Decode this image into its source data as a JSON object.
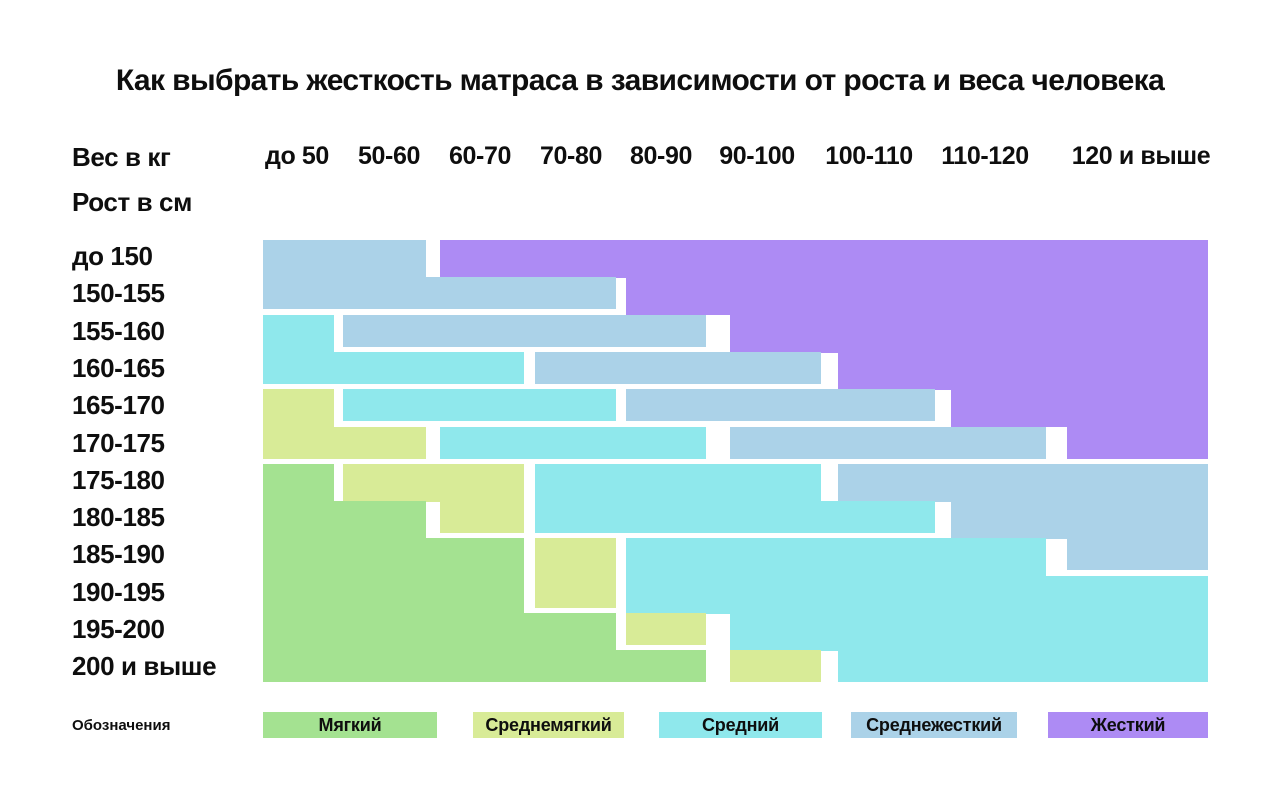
{
  "title": "Как выбрать жесткость матраса в зависимости от роста и веса человека",
  "axis": {
    "weight_label": "Вес в кг",
    "height_label": "Рост в см"
  },
  "legend": {
    "label": "Обозначения"
  },
  "chart_data": {
    "type": "heatmap",
    "title": "Как выбрать жесткость матраса в зависимости от роста и веса человека",
    "xlabel": "Вес в кг",
    "ylabel": "Рост в см",
    "grid": false,
    "legend_position": "bottom",
    "x_categories": [
      "до 50",
      "50-60",
      "60-70",
      "70-80",
      "80-90",
      "90-100",
      "100-110",
      "110-120",
      "120 и выше"
    ],
    "y_categories": [
      "до 150",
      "150-155",
      "155-160",
      "160-165",
      "165-170",
      "170-175",
      "175-180",
      "180-185",
      "185-190",
      "190-195",
      "195-200",
      "200 и выше"
    ],
    "categories": [
      {
        "id": "soft",
        "label": "Мягкий",
        "color": "#A4E291"
      },
      {
        "id": "medium_soft",
        "label": "Среднемягкий",
        "color": "#D8EB97"
      },
      {
        "id": "medium",
        "label": "Средний",
        "color": "#8FE8EC"
      },
      {
        "id": "medium_firm",
        "label": "Среднежесткий",
        "color": "#ABD2E8"
      },
      {
        "id": "firm",
        "label": "Жесткий",
        "color": "#AD8BF4"
      }
    ],
    "matrix": [
      [
        "medium_firm",
        "medium_firm",
        "firm",
        "firm",
        "firm",
        "firm",
        "firm",
        "firm",
        "firm"
      ],
      [
        "medium_firm",
        "medium_firm",
        "medium_firm",
        "medium_firm",
        "firm",
        "firm",
        "firm",
        "firm",
        "firm"
      ],
      [
        "medium",
        "medium_firm",
        "medium_firm",
        "medium_firm",
        "medium_firm",
        "firm",
        "firm",
        "firm",
        "firm"
      ],
      [
        "medium",
        "medium",
        "medium",
        "medium_firm",
        "medium_firm",
        "medium_firm",
        "firm",
        "firm",
        "firm"
      ],
      [
        "medium_soft",
        "medium",
        "medium",
        "medium",
        "medium_firm",
        "medium_firm",
        "medium_firm",
        "firm",
        "firm"
      ],
      [
        "medium_soft",
        "medium_soft",
        "medium",
        "medium",
        "medium",
        "medium_firm",
        "medium_firm",
        "medium_firm",
        "firm"
      ],
      [
        "soft",
        "medium_soft",
        "medium_soft",
        "medium",
        "medium",
        "medium",
        "medium_firm",
        "medium_firm",
        "medium_firm"
      ],
      [
        "soft",
        "soft",
        "medium_soft",
        "medium",
        "medium",
        "medium",
        "medium",
        "medium_firm",
        "medium_firm"
      ],
      [
        "soft",
        "soft",
        "soft",
        "medium_soft",
        "medium",
        "medium",
        "medium",
        "medium",
        "medium_firm"
      ],
      [
        "soft",
        "soft",
        "soft",
        "medium_soft",
        "medium",
        "medium",
        "medium",
        "medium",
        "medium"
      ],
      [
        "soft",
        "soft",
        "soft",
        "soft",
        "medium_soft",
        "medium",
        "medium",
        "medium",
        "medium"
      ],
      [
        "soft",
        "soft",
        "soft",
        "soft",
        "soft",
        "medium_soft",
        "medium",
        "medium",
        "medium"
      ]
    ]
  }
}
